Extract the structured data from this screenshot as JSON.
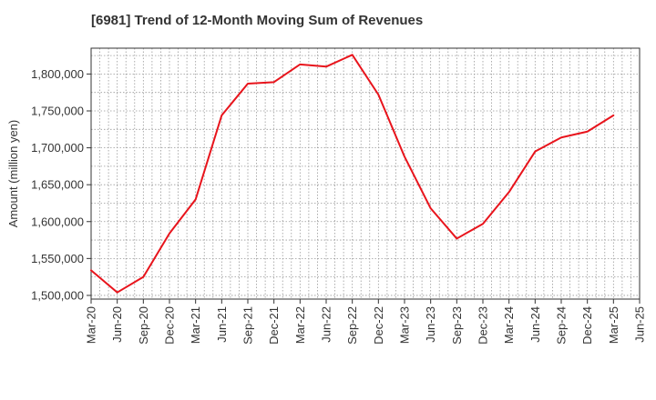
{
  "chart_data": {
    "type": "line",
    "title": "[6981]  Trend of 12-Month Moving Sum of Revenues",
    "xlabel": "",
    "ylabel": "Amount (million yen)",
    "ylim": [
      1495000,
      1835000
    ],
    "yticks": [
      1500000,
      1550000,
      1600000,
      1650000,
      1700000,
      1750000,
      1800000
    ],
    "ytick_labels": [
      "1,500,000",
      "1,550,000",
      "1,600,000",
      "1,650,000",
      "1,700,000",
      "1,750,000",
      "1,800,000"
    ],
    "categories": [
      "Mar-20",
      "Jun-20",
      "Sep-20",
      "Dec-20",
      "Mar-21",
      "Jun-21",
      "Sep-21",
      "Dec-21",
      "Mar-22",
      "Jun-22",
      "Sep-22",
      "Dec-22",
      "Mar-23",
      "Jun-23",
      "Sep-23",
      "Dec-23",
      "Mar-24",
      "Jun-24",
      "Sep-24",
      "Dec-24",
      "Mar-25",
      "Jun-25"
    ],
    "series": [
      {
        "color": "#e8141c",
        "values": [
          1534000,
          1504000,
          1525000,
          1584000,
          1630000,
          1744000,
          1787000,
          1789000,
          1813000,
          1810000,
          1826000,
          1772000,
          1688000,
          1618000,
          1577000,
          1597000,
          1640000,
          1695000,
          1714000,
          1722000,
          1744000,
          null
        ]
      }
    ],
    "grid": true,
    "grid_style": "dotted",
    "grid_color": "#999999",
    "axis_color": "#333333",
    "legend": "none"
  }
}
